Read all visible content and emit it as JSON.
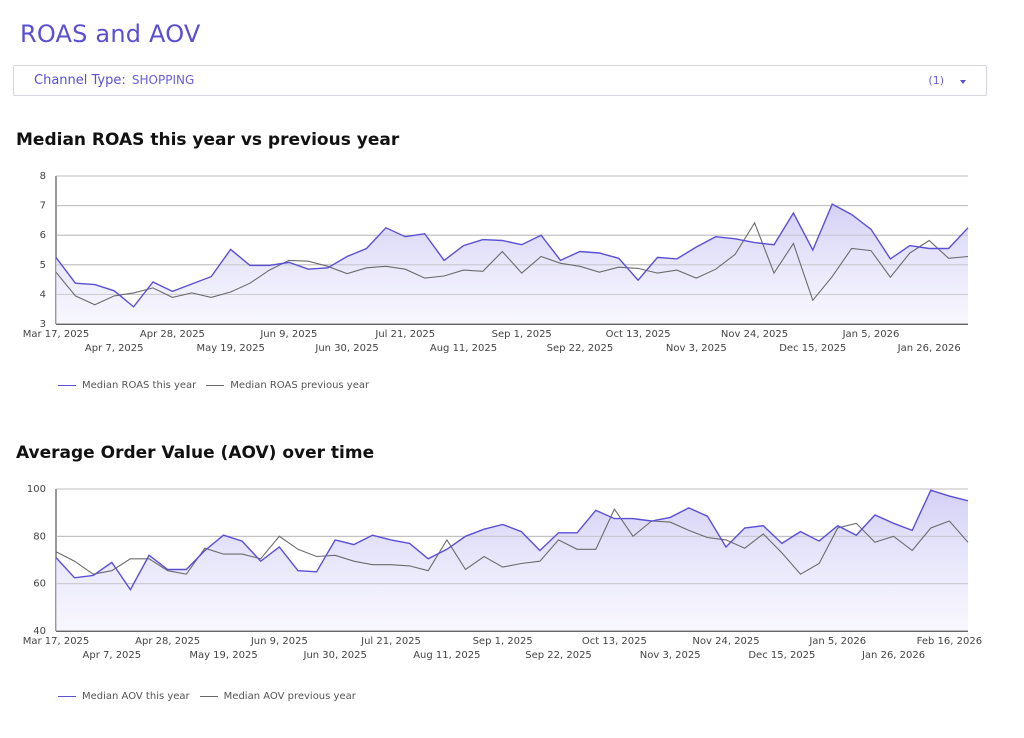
{
  "page": {
    "title": "ROAS and AOV"
  },
  "filter": {
    "label": "Channel Type:",
    "value": "SHOPPING",
    "count": "(1)"
  },
  "colors": {
    "accent": "#5a4fd1",
    "this_year": "#5b4fd6",
    "previous_year": "#6b6b6b",
    "fill": "#e2e0fa",
    "grid": "#bdbdbd"
  },
  "chart_data": [
    {
      "type": "area",
      "title": "Median ROAS this year vs previous year",
      "xlabel": "",
      "ylabel": "",
      "ylim": [
        3,
        8
      ],
      "yticks": [
        3,
        4,
        5,
        6,
        7,
        8
      ],
      "grid": true,
      "legend_position": "bottom-left",
      "xticks": [
        {
          "label": "Mar 17, 2025",
          "index": 0,
          "row": 0
        },
        {
          "label": "Apr 7, 2025",
          "index": 3,
          "row": 1
        },
        {
          "label": "Apr 28, 2025",
          "index": 6,
          "row": 0
        },
        {
          "label": "May 19, 2025",
          "index": 9,
          "row": 1
        },
        {
          "label": "Jun 9, 2025",
          "index": 12,
          "row": 0
        },
        {
          "label": "Jun 30, 2025",
          "index": 15,
          "row": 1
        },
        {
          "label": "Jul 21, 2025",
          "index": 18,
          "row": 0
        },
        {
          "label": "Aug 11, 2025",
          "index": 21,
          "row": 1
        },
        {
          "label": "Sep 1, 2025",
          "index": 24,
          "row": 0
        },
        {
          "label": "Sep 22, 2025",
          "index": 27,
          "row": 1
        },
        {
          "label": "Oct 13, 2025",
          "index": 30,
          "row": 0
        },
        {
          "label": "Nov 3, 2025",
          "index": 33,
          "row": 1
        },
        {
          "label": "Nov 24, 2025",
          "index": 36,
          "row": 0
        },
        {
          "label": "Dec 15, 2025",
          "index": 39,
          "row": 1
        },
        {
          "label": "Jan 5, 2026",
          "index": 42,
          "row": 0
        },
        {
          "label": "Jan 26, 2026",
          "index": 45,
          "row": 1
        }
      ],
      "series": [
        {
          "name": "Median ROAS this year",
          "role": "current",
          "values": [
            5.25,
            4.38,
            4.33,
            4.12,
            3.58,
            4.42,
            4.1,
            4.35,
            4.6,
            5.52,
            4.98,
            4.98,
            5.08,
            4.85,
            4.9,
            5.28,
            5.55,
            6.25,
            5.95,
            6.05,
            5.15,
            5.65,
            5.85,
            5.82,
            5.68,
            6.0,
            5.15,
            5.45,
            5.4,
            5.22,
            4.48,
            5.25,
            5.2,
            5.6,
            5.95,
            5.88,
            5.75,
            5.68,
            6.75,
            5.5,
            7.05,
            6.7,
            6.2,
            5.2,
            5.65,
            5.55,
            5.55,
            6.25
          ]
        },
        {
          "name": "Median ROAS previous year",
          "role": "previous",
          "values": [
            4.75,
            3.95,
            3.65,
            3.95,
            4.05,
            4.22,
            3.9,
            4.05,
            3.9,
            4.08,
            4.38,
            4.82,
            5.15,
            5.12,
            4.95,
            4.7,
            4.9,
            4.95,
            4.85,
            4.55,
            4.62,
            4.82,
            4.78,
            5.45,
            4.72,
            5.28,
            5.05,
            4.95,
            4.75,
            4.92,
            4.88,
            4.72,
            4.82,
            4.55,
            4.85,
            5.35,
            6.42,
            4.72,
            5.72,
            3.8,
            4.6,
            5.55,
            5.48,
            4.58,
            5.4,
            5.82,
            5.22,
            5.28
          ]
        }
      ]
    },
    {
      "type": "area",
      "title": "Average Order Value (AOV) over time",
      "xlabel": "",
      "ylabel": "",
      "ylim": [
        40,
        100
      ],
      "yticks": [
        40,
        60,
        80,
        100
      ],
      "grid": true,
      "legend_position": "bottom-left",
      "xticks": [
        {
          "label": "Mar 17, 2025",
          "index": 0,
          "row": 0
        },
        {
          "label": "Apr 7, 2025",
          "index": 3,
          "row": 1
        },
        {
          "label": "Apr 28, 2025",
          "index": 6,
          "row": 0
        },
        {
          "label": "May 19, 2025",
          "index": 9,
          "row": 1
        },
        {
          "label": "Jun 9, 2025",
          "index": 12,
          "row": 0
        },
        {
          "label": "Jun 30, 2025",
          "index": 15,
          "row": 1
        },
        {
          "label": "Jul 21, 2025",
          "index": 18,
          "row": 0
        },
        {
          "label": "Aug 11, 2025",
          "index": 21,
          "row": 1
        },
        {
          "label": "Sep 1, 2025",
          "index": 24,
          "row": 0
        },
        {
          "label": "Sep 22, 2025",
          "index": 27,
          "row": 1
        },
        {
          "label": "Oct 13, 2025",
          "index": 30,
          "row": 0
        },
        {
          "label": "Nov 3, 2025",
          "index": 33,
          "row": 1
        },
        {
          "label": "Nov 24, 2025",
          "index": 36,
          "row": 0
        },
        {
          "label": "Dec 15, 2025",
          "index": 39,
          "row": 1
        },
        {
          "label": "Jan 5, 2026",
          "index": 42,
          "row": 0
        },
        {
          "label": "Jan 26, 2026",
          "index": 45,
          "row": 1
        },
        {
          "label": "Feb 16, 2026",
          "index": 48,
          "row": 0
        }
      ],
      "series": [
        {
          "name": "Median AOV this year",
          "role": "current",
          "values": [
            71,
            62.5,
            63.5,
            69,
            57.5,
            72,
            66,
            66,
            74,
            80.5,
            78,
            69.5,
            75.5,
            65.5,
            65,
            78.5,
            76.5,
            80.5,
            78.5,
            77,
            70.5,
            74.5,
            80,
            83,
            85,
            82,
            74,
            81.5,
            81.5,
            91,
            87.5,
            87.5,
            86.5,
            88,
            92,
            88.5,
            75.5,
            83.5,
            84.5,
            77,
            82,
            78,
            84.5,
            80.5,
            89,
            85.5,
            82.5,
            99.5,
            97,
            95
          ]
        },
        {
          "name": "Median AOV previous year",
          "role": "previous",
          "values": [
            73.5,
            69.5,
            64,
            65.5,
            70.5,
            70.5,
            65.5,
            64,
            75,
            72.5,
            72.5,
            70.5,
            80,
            74.5,
            71.5,
            72,
            69.5,
            68,
            68,
            67.5,
            65.5,
            78.5,
            66,
            71.5,
            67,
            68.5,
            69.5,
            78.5,
            74.5,
            74.5,
            91.5,
            80,
            86.5,
            86,
            82.5,
            79.5,
            78.5,
            75,
            81,
            73,
            64,
            68.5,
            83.5,
            85.5,
            77.5,
            80,
            74,
            83.5,
            86.5,
            77.5
          ]
        }
      ]
    }
  ]
}
